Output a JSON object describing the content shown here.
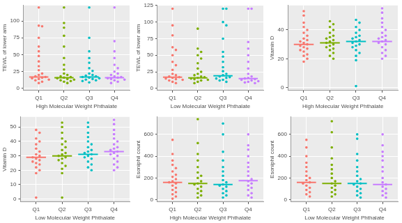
{
  "chart_data": [
    {
      "type": "dotplot",
      "x_label": "High Molecular Weight Phthalate",
      "y_label": "TEWL of lower arm",
      "categories": [
        "Q1",
        "Q2",
        "Q3",
        "Q4"
      ],
      "colors": [
        "#F8766D",
        "#7CAE00",
        "#00BFC4",
        "#C77CFF"
      ],
      "values": [
        [
          120,
          93,
          92,
          75,
          62,
          55,
          48,
          40,
          33,
          27,
          22,
          20,
          18,
          17,
          16,
          15,
          14,
          13,
          12,
          10,
          8
        ],
        [
          120,
          97,
          90,
          78,
          62,
          45,
          35,
          28,
          22,
          20,
          18,
          17,
          16,
          15,
          14,
          13,
          12,
          11,
          10,
          8
        ],
        [
          120,
          75,
          55,
          45,
          38,
          30,
          26,
          22,
          20,
          19,
          18,
          17,
          16,
          15,
          14,
          13,
          12,
          11,
          9
        ],
        [
          120,
          70,
          55,
          45,
          35,
          30,
          25,
          22,
          20,
          18,
          17,
          16,
          15,
          14,
          13,
          12,
          10,
          8
        ]
      ],
      "medians": [
        17,
        16,
        17,
        16
      ],
      "ylim": [
        -3,
        123
      ],
      "yticks": [
        0,
        25,
        50,
        75,
        100
      ],
      "grid": true
    },
    {
      "type": "dotplot",
      "x_label": "Low Molecular Weight Phthalate",
      "y_label": "TEWL of lower arm",
      "categories": [
        "Q1",
        "Q2",
        "Q3",
        "Q4"
      ],
      "colors": [
        "#F8766D",
        "#7CAE00",
        "#00BFC4",
        "#C77CFF"
      ],
      "values": [
        [
          120,
          95,
          80,
          62,
          58,
          50,
          40,
          35,
          28,
          22,
          20,
          18,
          17,
          16,
          15,
          14,
          13,
          12,
          10,
          8
        ],
        [
          90,
          60,
          55,
          50,
          45,
          38,
          30,
          25,
          22,
          20,
          18,
          17,
          16,
          15,
          14,
          13,
          12,
          10,
          8
        ],
        [
          120,
          120,
          100,
          95,
          75,
          55,
          48,
          40,
          32,
          26,
          22,
          20,
          18,
          17,
          16,
          15,
          13,
          12,
          10
        ],
        [
          120,
          120,
          70,
          60,
          50,
          40,
          30,
          22,
          18,
          16,
          15,
          14,
          13,
          12,
          11,
          10,
          9,
          8
        ]
      ],
      "medians": [
        17,
        16,
        19,
        15
      ],
      "ylim": [
        -3,
        125
      ],
      "yticks": [
        0,
        25,
        50,
        75,
        100,
        125
      ],
      "grid": true
    },
    {
      "type": "dotplot",
      "x_label": "High Molecular Weight Phthalate",
      "y_label": "Vitamin D",
      "categories": [
        "Q1",
        "Q2",
        "Q3",
        "Q4"
      ],
      "colors": [
        "#F8766D",
        "#7CAE00",
        "#00BFC4",
        "#C77CFF"
      ],
      "values": [
        [
          53,
          50,
          45,
          42,
          40,
          38,
          36,
          34,
          33,
          32,
          31,
          30,
          29,
          28,
          27,
          26,
          25,
          23,
          22,
          20,
          18
        ],
        [
          46,
          44,
          42,
          40,
          38,
          36,
          35,
          34,
          33,
          32,
          31,
          30,
          29,
          28,
          27,
          26,
          24,
          22,
          20
        ],
        [
          47,
          45,
          42,
          40,
          38,
          36,
          35,
          34,
          33,
          32,
          31,
          30,
          29,
          28,
          26,
          24,
          22,
          19,
          1
        ],
        [
          55,
          52,
          48,
          45,
          42,
          40,
          38,
          36,
          35,
          34,
          33,
          32,
          31,
          30,
          28,
          26,
          24,
          22,
          20
        ]
      ],
      "medians": [
        30,
        31,
        32,
        32
      ],
      "ylim": [
        -2,
        57
      ],
      "yticks": [
        0,
        20,
        40
      ],
      "grid": true
    },
    {
      "type": "dotplot",
      "x_label": "Low Molecular Weight Phthalate",
      "y_label": "Vitamin D",
      "categories": [
        "Q1",
        "Q2",
        "Q3",
        "Q4"
      ],
      "colors": [
        "#F8766D",
        "#7CAE00",
        "#00BFC4",
        "#C77CFF"
      ],
      "values": [
        [
          48,
          46,
          42,
          40,
          38,
          35,
          33,
          31,
          30,
          29,
          28,
          27,
          26,
          25,
          24,
          22,
          20,
          18,
          1
        ],
        [
          53,
          50,
          46,
          42,
          40,
          38,
          36,
          34,
          32,
          31,
          30,
          29,
          28,
          27,
          25,
          23,
          21,
          18,
          1
        ],
        [
          53,
          50,
          46,
          43,
          40,
          38,
          36,
          34,
          33,
          32,
          31,
          30,
          29,
          28,
          26,
          24,
          22,
          20
        ],
        [
          55,
          52,
          48,
          45,
          42,
          40,
          38,
          36,
          35,
          34,
          33,
          32,
          31,
          30,
          28,
          26,
          24,
          22,
          20
        ]
      ],
      "medians": [
        29,
        30,
        31,
        33
      ],
      "ylim": [
        -2,
        57
      ],
      "yticks": [
        0,
        10,
        20,
        30,
        40,
        50
      ],
      "grid": true
    },
    {
      "type": "dotplot",
      "x_label": "High Molecular Weight Phthalate",
      "y_label": "Esoniphil count",
      "categories": [
        "Q1",
        "Q2",
        "Q3",
        "Q4"
      ],
      "colors": [
        "#F8766D",
        "#7CAE00",
        "#00BFC4",
        "#C77CFF"
      ],
      "values": [
        [
          550,
          420,
          360,
          320,
          290,
          260,
          230,
          210,
          190,
          170,
          160,
          150,
          130,
          110,
          90,
          70,
          50,
          30,
          10
        ],
        [
          740,
          520,
          420,
          360,
          300,
          250,
          220,
          200,
          170,
          150,
          140,
          120,
          100,
          80,
          60,
          40,
          20
        ],
        [
          700,
          600,
          440,
          360,
          300,
          260,
          220,
          180,
          160,
          140,
          130,
          120,
          100,
          80,
          60,
          40,
          20
        ],
        [
          600,
          500,
          460,
          400,
          340,
          300,
          260,
          220,
          190,
          170,
          150,
          130,
          110,
          90,
          60,
          40,
          20
        ]
      ],
      "medians": [
        160,
        150,
        140,
        175
      ],
      "ylim": [
        -20,
        760
      ],
      "yticks": [
        0,
        200,
        400,
        600
      ],
      "grid": true
    },
    {
      "type": "dotplot",
      "x_label": "Low Molecular Weight Phthalate",
      "y_label": "Esoniphil count",
      "categories": [
        "Q1",
        "Q2",
        "Q3",
        "Q4"
      ],
      "colors": [
        "#F8766D",
        "#7CAE00",
        "#00BFC4",
        "#C77CFF"
      ],
      "values": [
        [
          550,
          480,
          400,
          340,
          300,
          260,
          220,
          200,
          180,
          160,
          150,
          130,
          110,
          90,
          70,
          50,
          30
        ],
        [
          720,
          620,
          480,
          380,
          320,
          280,
          240,
          200,
          170,
          150,
          130,
          110,
          90,
          70,
          50,
          30
        ],
        [
          600,
          560,
          420,
          360,
          300,
          260,
          220,
          190,
          170,
          150,
          140,
          120,
          100,
          80,
          60,
          40,
          20
        ],
        [
          600,
          500,
          440,
          400,
          360,
          300,
          260,
          200,
          160,
          140,
          120,
          100,
          80,
          60,
          40,
          20
        ]
      ],
      "medians": [
        160,
        150,
        150,
        140
      ],
      "ylim": [
        -20,
        760
      ],
      "yticks": [
        0,
        200,
        400,
        600
      ],
      "grid": true
    }
  ]
}
